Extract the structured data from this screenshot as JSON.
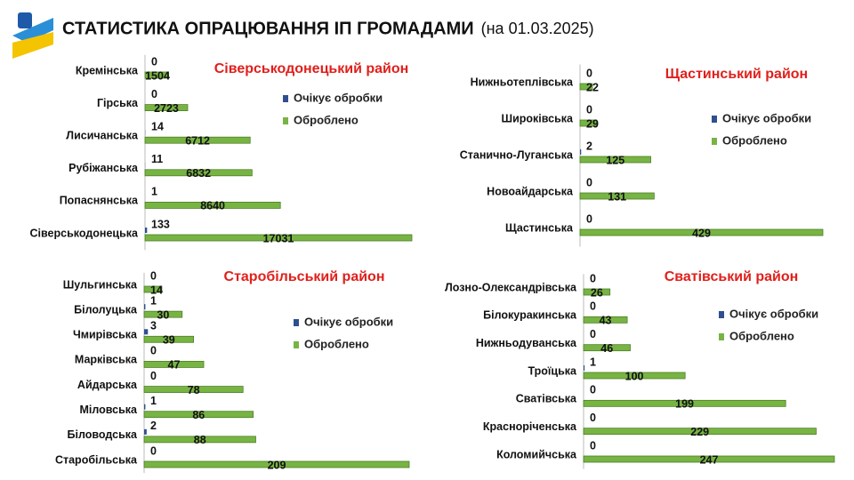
{
  "title": "СТАТИСТИКА ОПРАЦЮВАННЯ ІП ГРОМАДАМИ",
  "subtitle": "(на 01.03.2025)",
  "chart_data": [
    {
      "type": "bar",
      "title": "Сіверськодонецький район",
      "categories": [
        "Кремінська",
        "Гірська",
        "Лисичанська",
        "Рубіжанська",
        "Попаснянська",
        "Сіверськодонецька"
      ],
      "series": [
        {
          "name": "Очікує обробки",
          "color": "#2f4f8f",
          "values": [
            0,
            0,
            14,
            11,
            1,
            133
          ]
        },
        {
          "name": "Оброблено",
          "color": "#78b443",
          "values": [
            1504,
            2723,
            6712,
            6832,
            8640,
            17031
          ]
        }
      ]
    },
    {
      "type": "bar",
      "title": "Щастинський район",
      "categories": [
        "Нижньотеплівська",
        "Широківська",
        "Станично-Луганська",
        "Новоайдарська",
        "Щастинська"
      ],
      "series": [
        {
          "name": "Очікує обробки",
          "color": "#2f4f8f",
          "values": [
            0,
            0,
            2,
            0,
            0
          ]
        },
        {
          "name": "Оброблено",
          "color": "#78b443",
          "values": [
            22,
            29,
            125,
            131,
            429
          ]
        }
      ]
    },
    {
      "type": "bar",
      "title": "Старобільський район",
      "categories": [
        "Шульгинська",
        "Білолуцька",
        "Чмирівська",
        "Марківська",
        "Айдарська",
        "Міловська",
        "Біловодська",
        "Старобільська"
      ],
      "series": [
        {
          "name": "Очікує обробки",
          "color": "#2f4f8f",
          "values": [
            0,
            1,
            3,
            0,
            0,
            1,
            2,
            0
          ]
        },
        {
          "name": "Оброблено",
          "color": "#78b443",
          "values": [
            14,
            30,
            39,
            47,
            78,
            86,
            88,
            209
          ]
        }
      ]
    },
    {
      "type": "bar",
      "title": "Сватівський район",
      "categories": [
        "Лозно-Олександрівська",
        "Білокуракинська",
        "Нижньодуванська",
        "Троїцька",
        "Сватівська",
        "Красноріченська",
        "Коломийчська"
      ],
      "series": [
        {
          "name": "Очікує обробки",
          "color": "#2f4f8f",
          "values": [
            0,
            0,
            0,
            1,
            0,
            0,
            0
          ]
        },
        {
          "name": "Оброблено",
          "color": "#78b443",
          "values": [
            26,
            43,
            46,
            100,
            199,
            229,
            247
          ]
        }
      ]
    }
  ]
}
